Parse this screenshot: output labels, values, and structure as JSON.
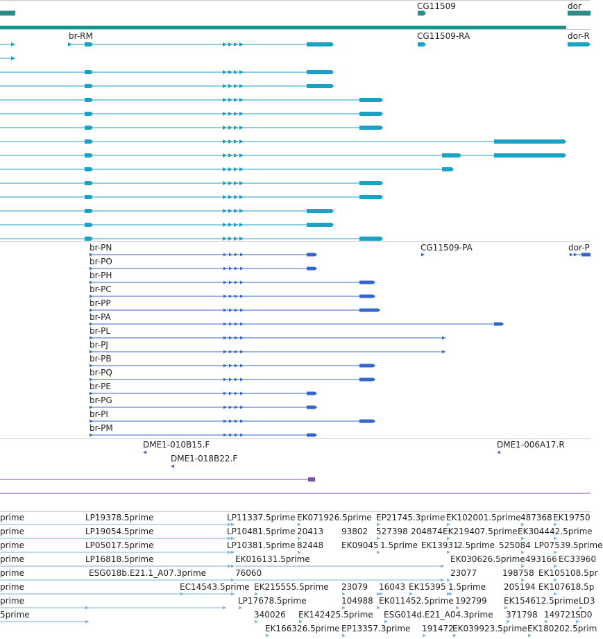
{
  "colors": {
    "gene": "#2e8b87",
    "mrna": "#1aa1c4",
    "protein": "#3667c8",
    "oligo": "#7b4fa8",
    "est": "#7fb3d8",
    "separator": "#c8c8c8"
  },
  "genes": [
    {
      "label": "CG11509"
    },
    {
      "label": "dor"
    }
  ],
  "mrna_labels": [
    {
      "label": "br-RM"
    },
    {
      "label": "CG11509-RA"
    },
    {
      "label": "dor-R"
    }
  ],
  "proteins": [
    {
      "label": "br-PN"
    },
    {
      "label": "br-PO"
    },
    {
      "label": "br-PH"
    },
    {
      "label": "br-PC"
    },
    {
      "label": "br-PP"
    },
    {
      "label": "br-PA"
    },
    {
      "label": "br-PL"
    },
    {
      "label": "br-PJ"
    },
    {
      "label": "br-PB"
    },
    {
      "label": "br-PQ"
    },
    {
      "label": "br-PE"
    },
    {
      "label": "br-PG"
    },
    {
      "label": "br-PI"
    },
    {
      "label": "br-PM"
    }
  ],
  "protein_extra": [
    {
      "label": "CG11509-PA"
    },
    {
      "label": "dor-P"
    }
  ],
  "oligos": [
    {
      "label": "DME1-010B15.F"
    },
    {
      "label": "DME1-006A17.R"
    },
    {
      "label": "DME1-018B22.F"
    }
  ],
  "est_rows": [
    [
      "prime",
      "LP19378.5prime",
      "LP11337.5prime",
      "EK071926.5prime",
      "EP21745.3prime",
      "EK102001.5prime",
      "487368",
      "EK19750"
    ],
    [
      "prime",
      "LP19054.5prime",
      "LP10481.5prime",
      "20413",
      "93802",
      "527398",
      "204874",
      "EK219407.5prime",
      "EK304442.5prime"
    ],
    [
      "prime",
      "LP05017.5prime",
      "LP10381.5prime",
      "82448",
      "EK09045",
      "1.5prime",
      "EK13931",
      "2.5prime",
      "525084",
      "LP07539.5prime"
    ],
    [
      "prime",
      "LP16818.5prime",
      "EK016131.5prime",
      "EK030626.5prime",
      "493166",
      "EC33960"
    ],
    [
      "prime",
      "ESG018b.E21.1_A07.3prime",
      "76060",
      "23077",
      "198758",
      "EK105108.5pr"
    ],
    [
      "prime",
      "EC14543.5prime",
      "EK215555.5prime",
      "23079",
      "16043",
      "EK15395",
      "1.5prime",
      "205194",
      "EK107618.5p"
    ],
    [
      "prime",
      "LP17678.5prime",
      "104988",
      "EK011452.5prime",
      "192799",
      "EK154612.5prime",
      "LD3"
    ],
    [
      "5prime",
      "340026",
      "EK142425.5prime",
      "ESG014d.E21_A04.3prime",
      "371798",
      "149721",
      "SD0"
    ],
    [
      "EK166326.5prime",
      "EP13357.3prime",
      "191472",
      "EK039923.5prime",
      "EK180202.5prim"
    ]
  ]
}
